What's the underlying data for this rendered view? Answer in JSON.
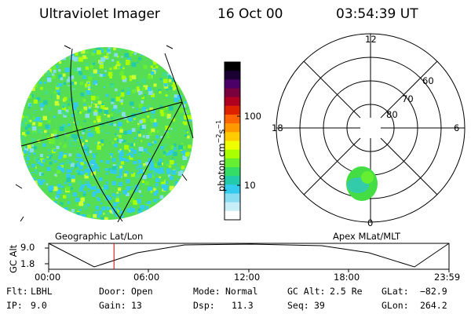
{
  "header": {
    "instrument": "Ultraviolet Imager",
    "date": "16 Oct 00",
    "time": "03:54:39 UT"
  },
  "colorbar": {
    "label_main": "photon cm",
    "label_exp1": "−2",
    "label_mid": "s",
    "label_exp2": "−1",
    "ticks": [
      "100",
      "10"
    ],
    "colors_top_to_bottom": [
      "#000000",
      "#1a0033",
      "#4a0066",
      "#7a003d",
      "#b00020",
      "#dd2200",
      "#ff6600",
      "#ff9900",
      "#ffcc00",
      "#eeff00",
      "#aaff00",
      "#66ee33",
      "#33dd66",
      "#22ccaa",
      "#33ccee",
      "#88ddf0",
      "#c8eef8",
      "#ffffff"
    ]
  },
  "geo_panel": {
    "caption": "Geographic Lat/Lon"
  },
  "polar_panel": {
    "caption": "Apex MLat/MLT",
    "mlt_labels": [
      "12",
      "18",
      "6",
      "0"
    ],
    "lat_labels": [
      "60",
      "70",
      "80"
    ]
  },
  "timeline": {
    "ylabel": "GC Alt",
    "y_ticks": [
      "9.0",
      "1.8"
    ],
    "x_ticks": [
      "00:00",
      "06:00",
      "12:00",
      "18:00",
      "23:59"
    ],
    "marker_time": "03:54:39",
    "marker_color": "#cc0000"
  },
  "info": {
    "flt_label": "Flt:",
    "flt_value": "LBHL",
    "ip_label": "IP:",
    "ip_value": "9.0",
    "door_label": "Door:",
    "door_value": "Open",
    "gain_label": "Gain:",
    "gain_value": "13",
    "mode_label": "Mode:",
    "mode_value": "Normal",
    "dsp_label": "Dsp:",
    "dsp_value": "11.3",
    "gcalt_label": "GC Alt:",
    "gcalt_value": "2.5 Re",
    "seq_label": "Seq:",
    "seq_value": "39",
    "glat_label": "GLat:",
    "glat_value": "−82.9",
    "glon_label": "GLon:",
    "glon_value": "264.2"
  }
}
